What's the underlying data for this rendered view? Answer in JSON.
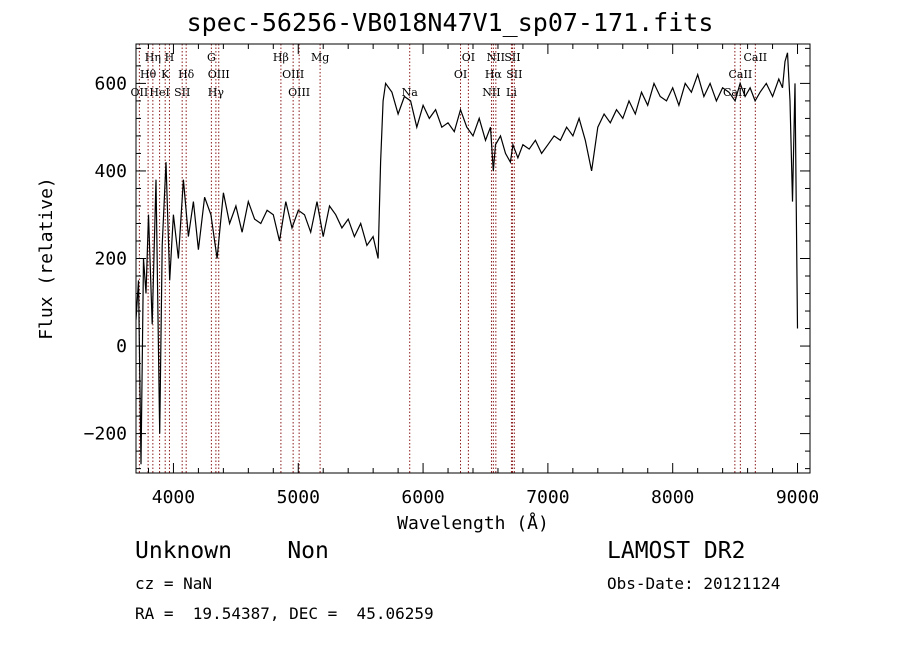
{
  "chart_data": {
    "type": "line",
    "title": "spec-56256-VB018N47V1_sp07-171.fits",
    "xlabel": "Wavelength (Å)",
    "ylabel": "Flux (relative)",
    "xlim": [
      3700,
      9100
    ],
    "ylim": [
      -290,
      690
    ],
    "x_ticks": [
      4000,
      5000,
      6000,
      7000,
      8000,
      9000
    ],
    "y_ticks": [
      -200,
      0,
      200,
      400,
      600
    ],
    "x_tick_labels": [
      "4000",
      "5000",
      "6000",
      "7000",
      "8000",
      "9000"
    ],
    "y_tick_labels": [
      "−200",
      "0",
      "200",
      "400",
      "600"
    ],
    "line_color": "#000000",
    "marker_color": "#8b1a1a",
    "series": [
      {
        "name": "flux",
        "x": [
          3700,
          3720,
          3740,
          3760,
          3780,
          3800,
          3830,
          3860,
          3890,
          3910,
          3940,
          3970,
          4000,
          4040,
          4080,
          4120,
          4160,
          4200,
          4250,
          4300,
          4350,
          4400,
          4450,
          4500,
          4550,
          4600,
          4650,
          4700,
          4750,
          4800,
          4850,
          4900,
          4950,
          5000,
          5050,
          5100,
          5150,
          5200,
          5250,
          5300,
          5350,
          5400,
          5450,
          5500,
          5550,
          5600,
          5640,
          5660,
          5680,
          5700,
          5750,
          5800,
          5850,
          5900,
          5950,
          6000,
          6050,
          6100,
          6150,
          6200,
          6250,
          6300,
          6350,
          6400,
          6450,
          6500,
          6540,
          6563,
          6580,
          6620,
          6660,
          6700,
          6720,
          6760,
          6800,
          6850,
          6900,
          6950,
          7000,
          7050,
          7100,
          7150,
          7200,
          7250,
          7300,
          7350,
          7400,
          7450,
          7500,
          7550,
          7600,
          7650,
          7700,
          7750,
          7800,
          7850,
          7900,
          7950,
          8000,
          8050,
          8100,
          8150,
          8200,
          8250,
          8300,
          8350,
          8400,
          8450,
          8500,
          8540,
          8580,
          8620,
          8660,
          8700,
          8750,
          8800,
          8850,
          8880,
          8900,
          8920,
          8940,
          8960,
          8980,
          9000
        ],
        "y": [
          60,
          150,
          -270,
          200,
          120,
          300,
          50,
          380,
          -200,
          230,
          420,
          150,
          300,
          200,
          380,
          250,
          330,
          220,
          340,
          300,
          200,
          350,
          280,
          320,
          260,
          330,
          290,
          280,
          310,
          300,
          240,
          330,
          270,
          310,
          300,
          260,
          330,
          250,
          320,
          300,
          270,
          290,
          250,
          280,
          230,
          250,
          200,
          420,
          560,
          600,
          580,
          530,
          570,
          560,
          500,
          550,
          520,
          540,
          500,
          510,
          490,
          540,
          500,
          480,
          520,
          470,
          500,
          400,
          460,
          480,
          440,
          420,
          460,
          430,
          460,
          450,
          470,
          440,
          460,
          480,
          470,
          500,
          480,
          520,
          470,
          400,
          500,
          530,
          510,
          540,
          520,
          560,
          530,
          580,
          550,
          600,
          570,
          560,
          590,
          550,
          600,
          580,
          620,
          570,
          600,
          560,
          590,
          580,
          560,
          600,
          570,
          590,
          560,
          580,
          600,
          570,
          610,
          590,
          650,
          670,
          560,
          330,
          600,
          40
        ]
      }
    ],
    "line_markers": [
      {
        "label": "Hη",
        "wl": 3835,
        "row": 0
      },
      {
        "label": "H",
        "wl": 3968,
        "row": 0
      },
      {
        "label": "Hθ",
        "wl": 3797,
        "row": 1
      },
      {
        "label": "K",
        "wl": 3934,
        "row": 1
      },
      {
        "label": "Hδ",
        "wl": 4102,
        "row": 1
      },
      {
        "label": "OII",
        "wl": 3727,
        "row": 2
      },
      {
        "label": "HeI",
        "wl": 3889,
        "row": 2
      },
      {
        "label": "SII",
        "wl": 4070,
        "row": 2
      },
      {
        "label": "G",
        "wl": 4304,
        "row": 0
      },
      {
        "label": "OIII",
        "wl": 4363,
        "row": 1
      },
      {
        "label": "Hγ",
        "wl": 4340,
        "row": 2
      },
      {
        "label": "Hβ",
        "wl": 4861,
        "row": 0
      },
      {
        "label": "OIII",
        "wl": 4959,
        "row": 1
      },
      {
        "label": "OIII",
        "wl": 5007,
        "row": 2
      },
      {
        "label": "Mg",
        "wl": 5175,
        "row": 0
      },
      {
        "label": "Na",
        "wl": 5893,
        "row": 2
      },
      {
        "label": "OI",
        "wl": 6300,
        "row": 1
      },
      {
        "label": "OI",
        "wl": 6363,
        "row": 0
      },
      {
        "label": "NII",
        "wl": 6548,
        "row": 2
      },
      {
        "label": "NII",
        "wl": 6583,
        "row": 0
      },
      {
        "label": "Hα",
        "wl": 6563,
        "row": 1
      },
      {
        "label": "SII",
        "wl": 6716,
        "row": 0
      },
      {
        "label": "SII",
        "wl": 6731,
        "row": 1
      },
      {
        "label": "Li",
        "wl": 6708,
        "row": 2
      },
      {
        "label": "CaII",
        "wl": 8498,
        "row": 2
      },
      {
        "label": "CaII",
        "wl": 8542,
        "row": 1
      },
      {
        "label": "CaII",
        "wl": 8662,
        "row": 0
      }
    ]
  },
  "info": {
    "classification": "Unknown    Non",
    "survey": "LAMOST DR2",
    "cz": "cz = NaN",
    "obs_date": "Obs-Date: 20121124",
    "coords": "RA =  19.54387, DEC =  45.06259"
  }
}
